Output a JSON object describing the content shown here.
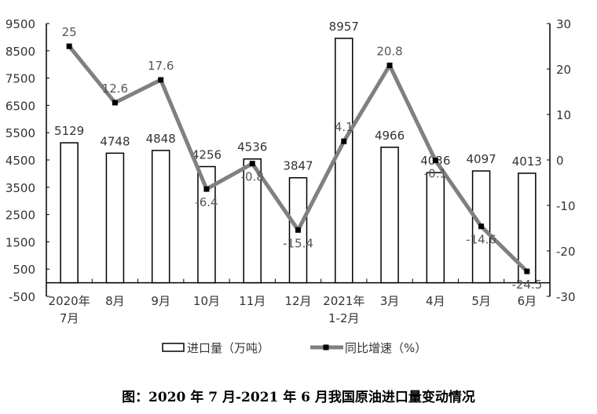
{
  "chart_data": {
    "type": "bar+line",
    "categories": [
      "2020年\n7月",
      "8月",
      "9月",
      "10月",
      "11月",
      "12月",
      "2021年\n1-2月",
      "3月",
      "4月",
      "5月",
      "6月"
    ],
    "series": [
      {
        "name": "进口量（万吨）",
        "type": "bar",
        "axis": "left",
        "values": [
          5129,
          4748,
          4848,
          4256,
          4536,
          3847,
          8957,
          4966,
          4036,
          4097,
          4013
        ],
        "fill": "#ffffff",
        "stroke": "#000000"
      },
      {
        "name": "同比增速（%）",
        "type": "line",
        "axis": "right",
        "values": [
          25,
          12.6,
          17.6,
          -6.4,
          -0.8,
          -15.4,
          4.1,
          20.8,
          -0.1,
          -14.6,
          -24.5
        ],
        "color": "#808080",
        "marker_color": "#000000"
      }
    ],
    "left_axis": {
      "range": [
        -500,
        9500
      ],
      "ticks": [
        -500,
        500,
        1500,
        2500,
        3500,
        4500,
        5500,
        6500,
        7500,
        8500,
        9500
      ]
    },
    "right_axis": {
      "range": [
        -30,
        30
      ],
      "ticks": [
        -30,
        -20,
        -10,
        0,
        10,
        20,
        30
      ]
    },
    "legend": "bottom",
    "grid": false
  },
  "caption": "图：2020 年 7 月-2021 年 6 月我国原油进口量变动情况"
}
